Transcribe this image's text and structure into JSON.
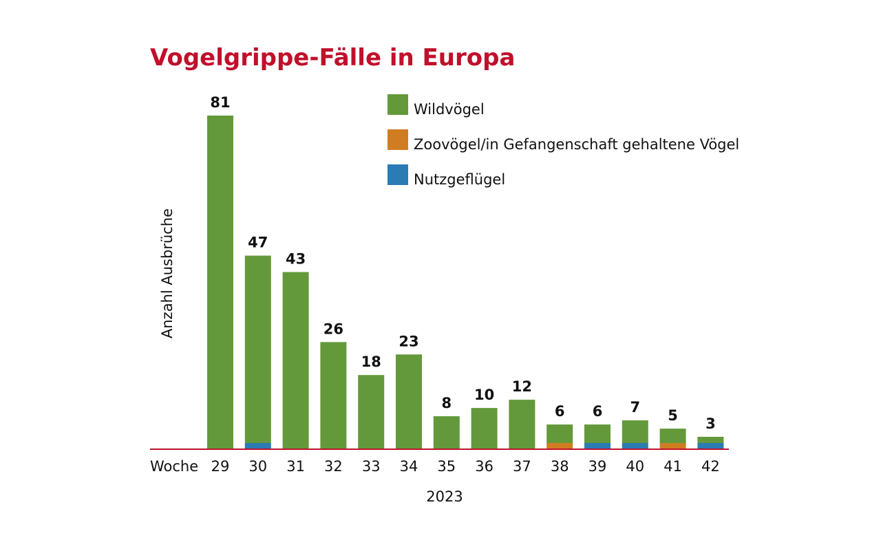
{
  "chart_data": {
    "type": "bar",
    "title": "Vogelgrippe-Fälle in Europa",
    "ylabel": "Anzahl Ausbrüche",
    "xlabel": "2023",
    "x_prefix": "Woche",
    "categories": [
      "29",
      "30",
      "31",
      "32",
      "33",
      "34",
      "35",
      "36",
      "37",
      "38",
      "39",
      "40",
      "41",
      "42"
    ],
    "totals": [
      81,
      47,
      43,
      26,
      18,
      23,
      8,
      10,
      12,
      6,
      6,
      7,
      5,
      3
    ],
    "series": [
      {
        "name": "Nutzgeflügel",
        "color": "#2b7bb4",
        "values": [
          0,
          1.5,
          0,
          0,
          0,
          0,
          0,
          0,
          0,
          0,
          1.5,
          1.5,
          0,
          1.5
        ]
      },
      {
        "name": "Zoovögel/in Gefangenschaft gehaltene Vögel",
        "color": "#d07d22",
        "values": [
          0,
          0,
          0,
          0,
          0,
          0,
          0,
          0,
          0,
          1.5,
          0,
          0,
          1.5,
          0
        ]
      },
      {
        "name": "Wildvögel",
        "color": "#63993a",
        "values": [
          81,
          45.5,
          43,
          26,
          18,
          23,
          8,
          10,
          12,
          4.5,
          4.5,
          5.5,
          3.5,
          1.5
        ]
      }
    ],
    "legend_order": [
      "Wildvögel",
      "Zoovögel/in Gefangenschaft gehaltene Vögel",
      "Nutzgeflügel"
    ],
    "legend_position": "top-right",
    "stacked": true,
    "grid": false,
    "ylim": [
      0,
      81
    ],
    "title_color": "#c0102b",
    "baseline_color": "#c0102b"
  }
}
